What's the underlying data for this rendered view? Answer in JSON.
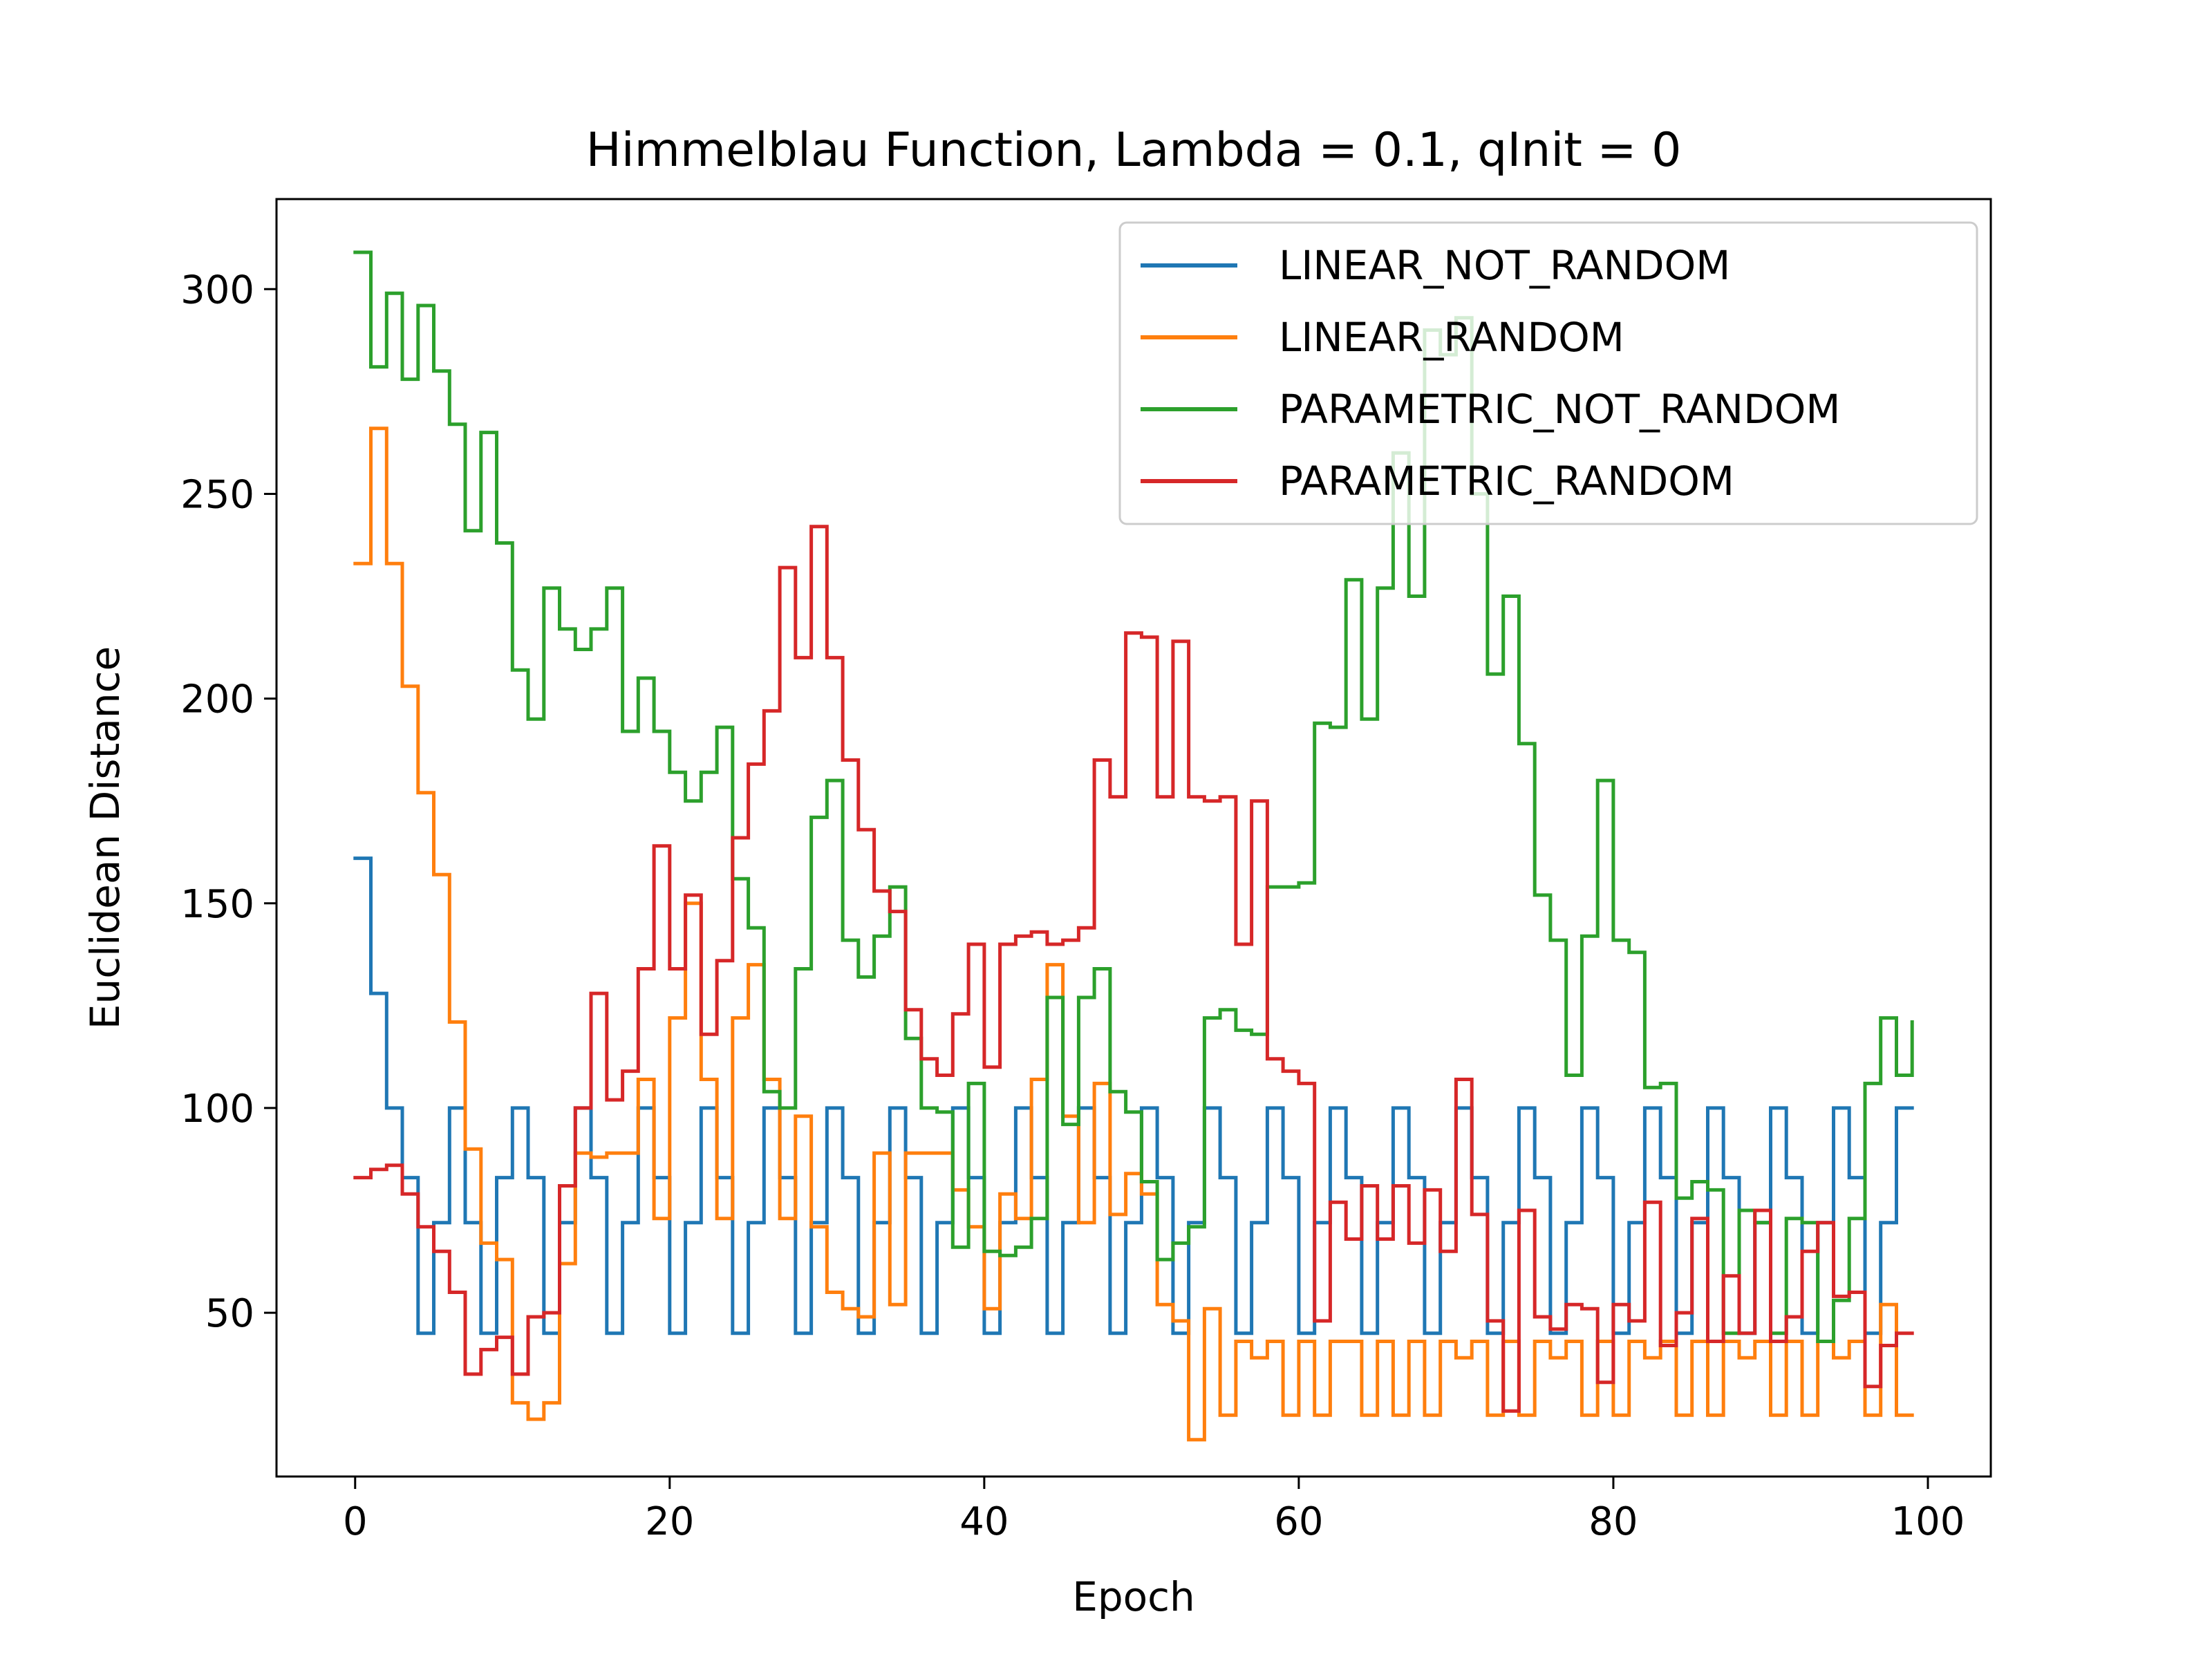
{
  "chart_data": {
    "type": "line",
    "drawstyle": "steps-post",
    "title": "Himmelblau Function, Lambda = 0.1, qInit = 0",
    "xlabel": "Epoch",
    "ylabel": "Euclidean Distance",
    "xlim": [
      -5,
      104
    ],
    "ylim": [
      10,
      322
    ],
    "xticks": [
      0,
      20,
      40,
      60,
      80,
      100
    ],
    "yticks": [
      50,
      100,
      150,
      200,
      250,
      300
    ],
    "legend_position": "upper right",
    "grid": false,
    "series": [
      {
        "name": "LINEAR_NOT_RANDOM",
        "color": "#1f77b4",
        "x": [
          0,
          1,
          2,
          3,
          4,
          5,
          6,
          7,
          8,
          9,
          10,
          11,
          12,
          13,
          14,
          15,
          16,
          17,
          18,
          19,
          20,
          21,
          22,
          23,
          24,
          25,
          26,
          27,
          28,
          29,
          30,
          31,
          32,
          33,
          34,
          35,
          36,
          37,
          38,
          39,
          40,
          41,
          42,
          43,
          44,
          45,
          46,
          47,
          48,
          49,
          50,
          51,
          52,
          53,
          54,
          55,
          56,
          57,
          58,
          59,
          60,
          61,
          62,
          63,
          64,
          65,
          66,
          67,
          68,
          69,
          70,
          71,
          72,
          73,
          74,
          75,
          76,
          77,
          78,
          79,
          80,
          81,
          82,
          83,
          84,
          85,
          86,
          87,
          88,
          89,
          90,
          91,
          92,
          93,
          94,
          95,
          96,
          97,
          98,
          99
        ],
        "y": [
          161,
          128,
          100,
          83,
          45,
          72,
          100,
          72,
          45,
          83,
          100,
          83,
          45,
          72,
          100,
          83,
          45,
          72,
          100,
          83,
          45,
          72,
          100,
          83,
          45,
          72,
          100,
          83,
          45,
          72,
          100,
          83,
          45,
          72,
          100,
          83,
          45,
          72,
          100,
          83,
          45,
          72,
          100,
          83,
          45,
          72,
          100,
          83,
          45,
          72,
          100,
          83,
          45,
          72,
          100,
          83,
          45,
          72,
          100,
          83,
          45,
          72,
          100,
          83,
          45,
          72,
          100,
          83,
          45,
          72,
          100,
          83,
          45,
          72,
          100,
          83,
          45,
          72,
          100,
          83,
          45,
          72,
          100,
          83,
          45,
          72,
          100,
          83,
          45,
          72,
          100,
          83,
          45,
          72,
          100,
          83,
          45,
          72,
          100,
          100
        ]
      },
      {
        "name": "LINEAR_RANDOM",
        "color": "#ff7f0e",
        "x": [
          0,
          1,
          2,
          3,
          4,
          5,
          6,
          7,
          8,
          9,
          10,
          11,
          12,
          13,
          14,
          15,
          16,
          17,
          18,
          19,
          20,
          21,
          22,
          23,
          24,
          25,
          26,
          27,
          28,
          29,
          30,
          31,
          32,
          33,
          34,
          35,
          36,
          37,
          38,
          39,
          40,
          41,
          42,
          43,
          44,
          45,
          46,
          47,
          48,
          49,
          50,
          51,
          52,
          53,
          54,
          55,
          56,
          57,
          58,
          59,
          60,
          61,
          62,
          63,
          64,
          65,
          66,
          67,
          68,
          69,
          70,
          71,
          72,
          73,
          74,
          75,
          76,
          77,
          78,
          79,
          80,
          81,
          82,
          83,
          84,
          85,
          86,
          87,
          88,
          89,
          90,
          91,
          92,
          93,
          94,
          95,
          96,
          97,
          98,
          99
        ],
        "y": [
          233,
          266,
          233,
          203,
          177,
          157,
          121,
          90,
          67,
          63,
          28,
          24,
          28,
          62,
          89,
          88,
          89,
          89,
          107,
          73,
          122,
          150,
          107,
          73,
          122,
          135,
          107,
          73,
          98,
          71,
          55,
          51,
          49,
          89,
          52,
          89,
          89,
          89,
          80,
          71,
          51,
          79,
          73,
          107,
          135,
          98,
          72,
          106,
          74,
          84,
          79,
          52,
          48,
          19,
          51,
          25,
          43,
          39,
          43,
          25,
          43,
          25,
          43,
          43,
          25,
          43,
          25,
          43,
          25,
          43,
          39,
          43,
          25,
          43,
          25,
          43,
          39,
          43,
          25,
          43,
          25,
          43,
          39,
          43,
          25,
          43,
          25,
          43,
          39,
          43,
          25,
          43,
          25,
          43,
          39,
          43,
          25,
          52,
          25,
          25
        ]
      },
      {
        "name": "PARAMETRIC_NOT_RANDOM",
        "color": "#2ca02c",
        "x": [
          0,
          1,
          2,
          3,
          4,
          5,
          6,
          7,
          8,
          9,
          10,
          11,
          12,
          13,
          14,
          15,
          16,
          17,
          18,
          19,
          20,
          21,
          22,
          23,
          24,
          25,
          26,
          27,
          28,
          29,
          30,
          31,
          32,
          33,
          34,
          35,
          36,
          37,
          38,
          39,
          40,
          41,
          42,
          43,
          44,
          45,
          46,
          47,
          48,
          49,
          50,
          51,
          52,
          53,
          54,
          55,
          56,
          57,
          58,
          59,
          60,
          61,
          62,
          63,
          64,
          65,
          66,
          67,
          68,
          69,
          70,
          71,
          72,
          73,
          74,
          75,
          76,
          77,
          78,
          79,
          80,
          81,
          82,
          83,
          84,
          85,
          86,
          87,
          88,
          89,
          90,
          91,
          92,
          93,
          94,
          95,
          96,
          97,
          98,
          99
        ],
        "y": [
          309,
          281,
          299,
          278,
          296,
          280,
          267,
          241,
          265,
          238,
          207,
          195,
          227,
          217,
          212,
          217,
          227,
          192,
          205,
          192,
          182,
          175,
          182,
          193,
          156,
          144,
          104,
          100,
          134,
          171,
          180,
          141,
          132,
          142,
          154,
          117,
          100,
          99,
          66,
          106,
          65,
          64,
          66,
          73,
          127,
          96,
          127,
          134,
          104,
          99,
          82,
          63,
          67,
          71,
          122,
          124,
          119,
          118,
          154,
          154,
          155,
          194,
          193,
          229,
          195,
          227,
          260,
          225,
          290,
          284,
          293,
          250,
          206,
          225,
          189,
          152,
          141,
          108,
          142,
          180,
          141,
          138,
          105,
          106,
          78,
          82,
          80,
          45,
          75,
          72,
          45,
          73,
          72,
          43,
          53,
          73,
          106,
          122,
          108,
          121
        ]
      },
      {
        "name": "PARAMETRIC_RANDOM",
        "color": "#d62728",
        "x": [
          0,
          1,
          2,
          3,
          4,
          5,
          6,
          7,
          8,
          9,
          10,
          11,
          12,
          13,
          14,
          15,
          16,
          17,
          18,
          19,
          20,
          21,
          22,
          23,
          24,
          25,
          26,
          27,
          28,
          29,
          30,
          31,
          32,
          33,
          34,
          35,
          36,
          37,
          38,
          39,
          40,
          41,
          42,
          43,
          44,
          45,
          46,
          47,
          48,
          49,
          50,
          51,
          52,
          53,
          54,
          55,
          56,
          57,
          58,
          59,
          60,
          61,
          62,
          63,
          64,
          65,
          66,
          67,
          68,
          69,
          70,
          71,
          72,
          73,
          74,
          75,
          76,
          77,
          78,
          79,
          80,
          81,
          82,
          83,
          84,
          85,
          86,
          87,
          88,
          89,
          90,
          91,
          92,
          93,
          94,
          95,
          96,
          97,
          98,
          99
        ],
        "y": [
          83,
          85,
          86,
          79,
          71,
          65,
          55,
          35,
          41,
          44,
          35,
          49,
          50,
          81,
          100,
          128,
          102,
          109,
          134,
          164,
          134,
          152,
          118,
          136,
          166,
          184,
          197,
          232,
          210,
          242,
          210,
          185,
          168,
          153,
          148,
          124,
          112,
          108,
          123,
          140,
          110,
          140,
          142,
          143,
          140,
          141,
          144,
          185,
          176,
          216,
          215,
          176,
          214,
          176,
          175,
          176,
          140,
          175,
          112,
          109,
          106,
          48,
          77,
          68,
          81,
          68,
          81,
          67,
          80,
          65,
          107,
          74,
          48,
          26,
          75,
          49,
          46,
          52,
          51,
          33,
          52,
          48,
          77,
          42,
          50,
          73,
          43,
          59,
          45,
          75,
          43,
          49,
          65,
          72,
          54,
          55,
          32,
          42,
          45,
          45
        ]
      }
    ]
  }
}
